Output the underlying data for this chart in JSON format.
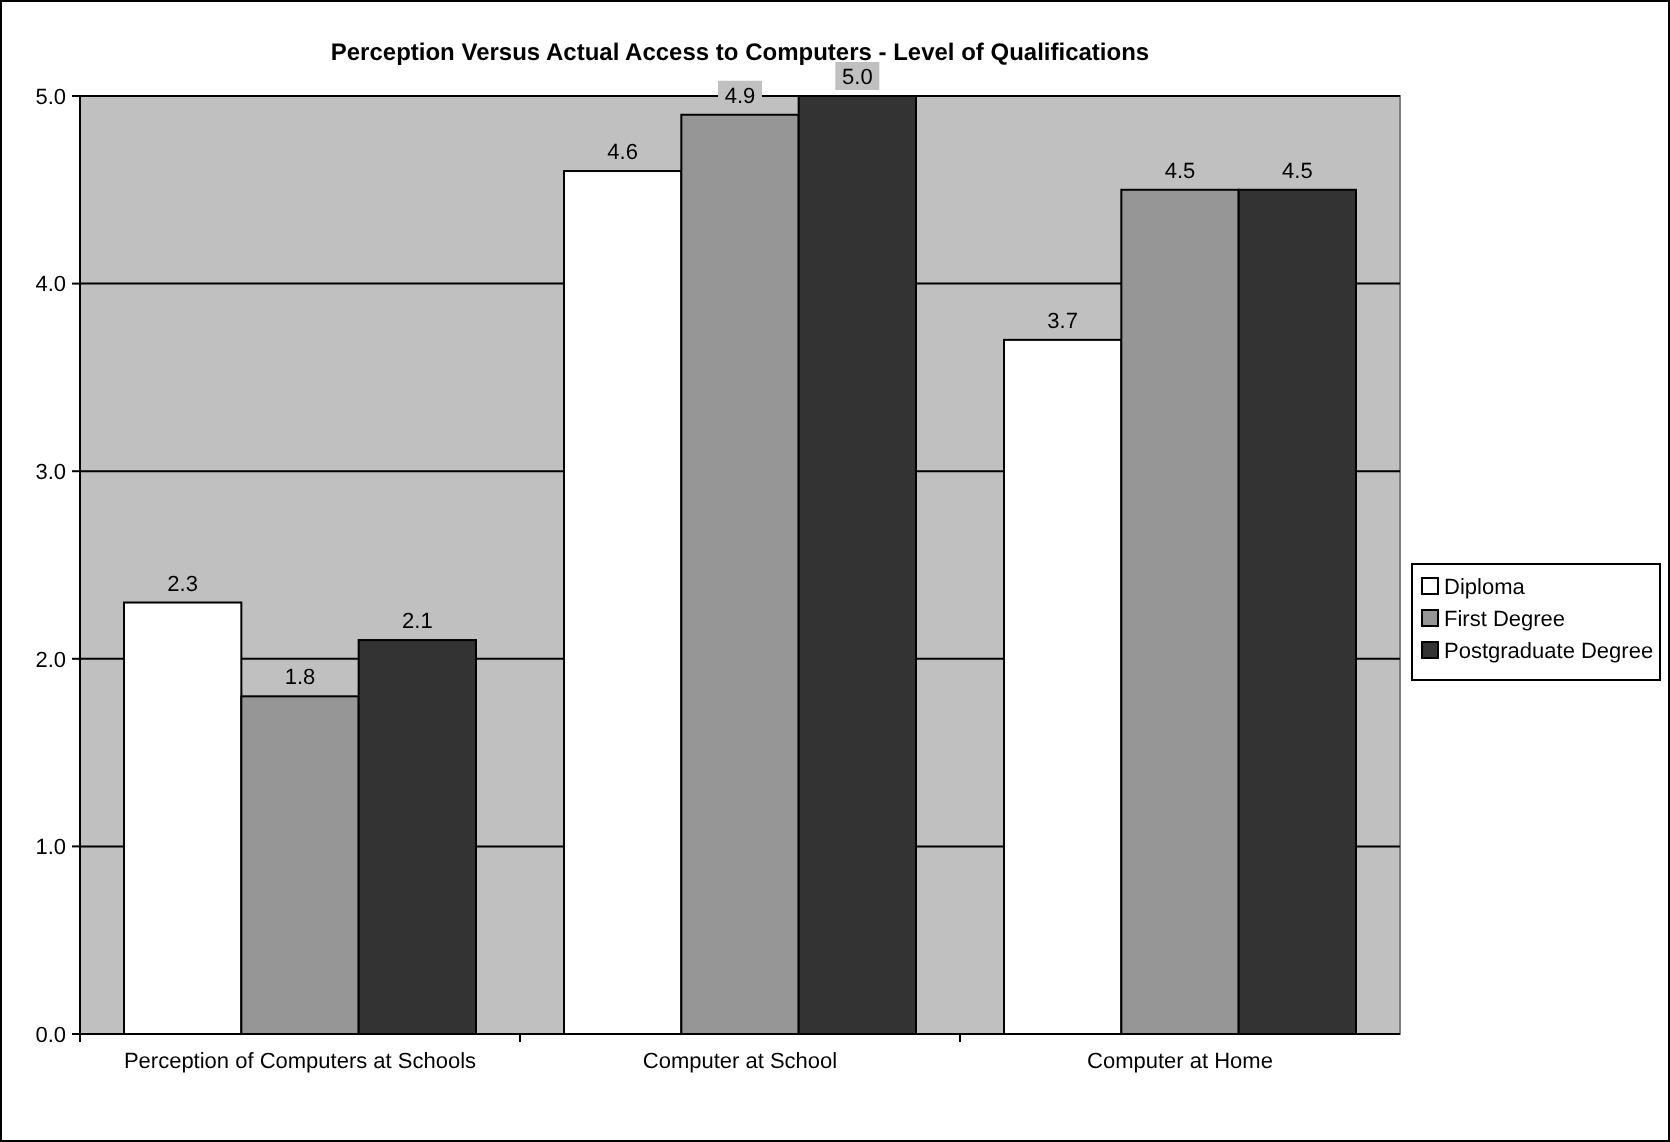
{
  "chart_data": {
    "type": "bar",
    "title": "Perception Versus Actual Access to Computers - Level of Qualifications",
    "categories": [
      "Perception of Computers at Schools",
      "Computer at School",
      "Computer at Home"
    ],
    "series": [
      {
        "name": "Diploma",
        "color": "#ffffff",
        "values": [
          2.3,
          4.6,
          3.7
        ],
        "value_labels": [
          "2.3",
          "4.6",
          "3.7"
        ]
      },
      {
        "name": "First Degree",
        "color": "#969696",
        "values": [
          1.8,
          4.9,
          4.5
        ],
        "value_labels": [
          "1.8",
          "4.9",
          "4.5"
        ]
      },
      {
        "name": "Postgraduate Degree",
        "color": "#333333",
        "values": [
          2.1,
          5.0,
          4.5
        ],
        "value_labels": [
          "2.1",
          "5.0",
          "4.5"
        ]
      }
    ],
    "ylim": [
      0,
      5
    ],
    "yticks": [
      {
        "value": 0,
        "label": "0.0"
      },
      {
        "value": 1,
        "label": "1.0"
      },
      {
        "value": 2,
        "label": "2.0"
      },
      {
        "value": 3,
        "label": "3.0"
      },
      {
        "value": 4,
        "label": "4.0"
      },
      {
        "value": 5,
        "label": "5.0"
      }
    ],
    "grid": "y",
    "legend": "right"
  }
}
